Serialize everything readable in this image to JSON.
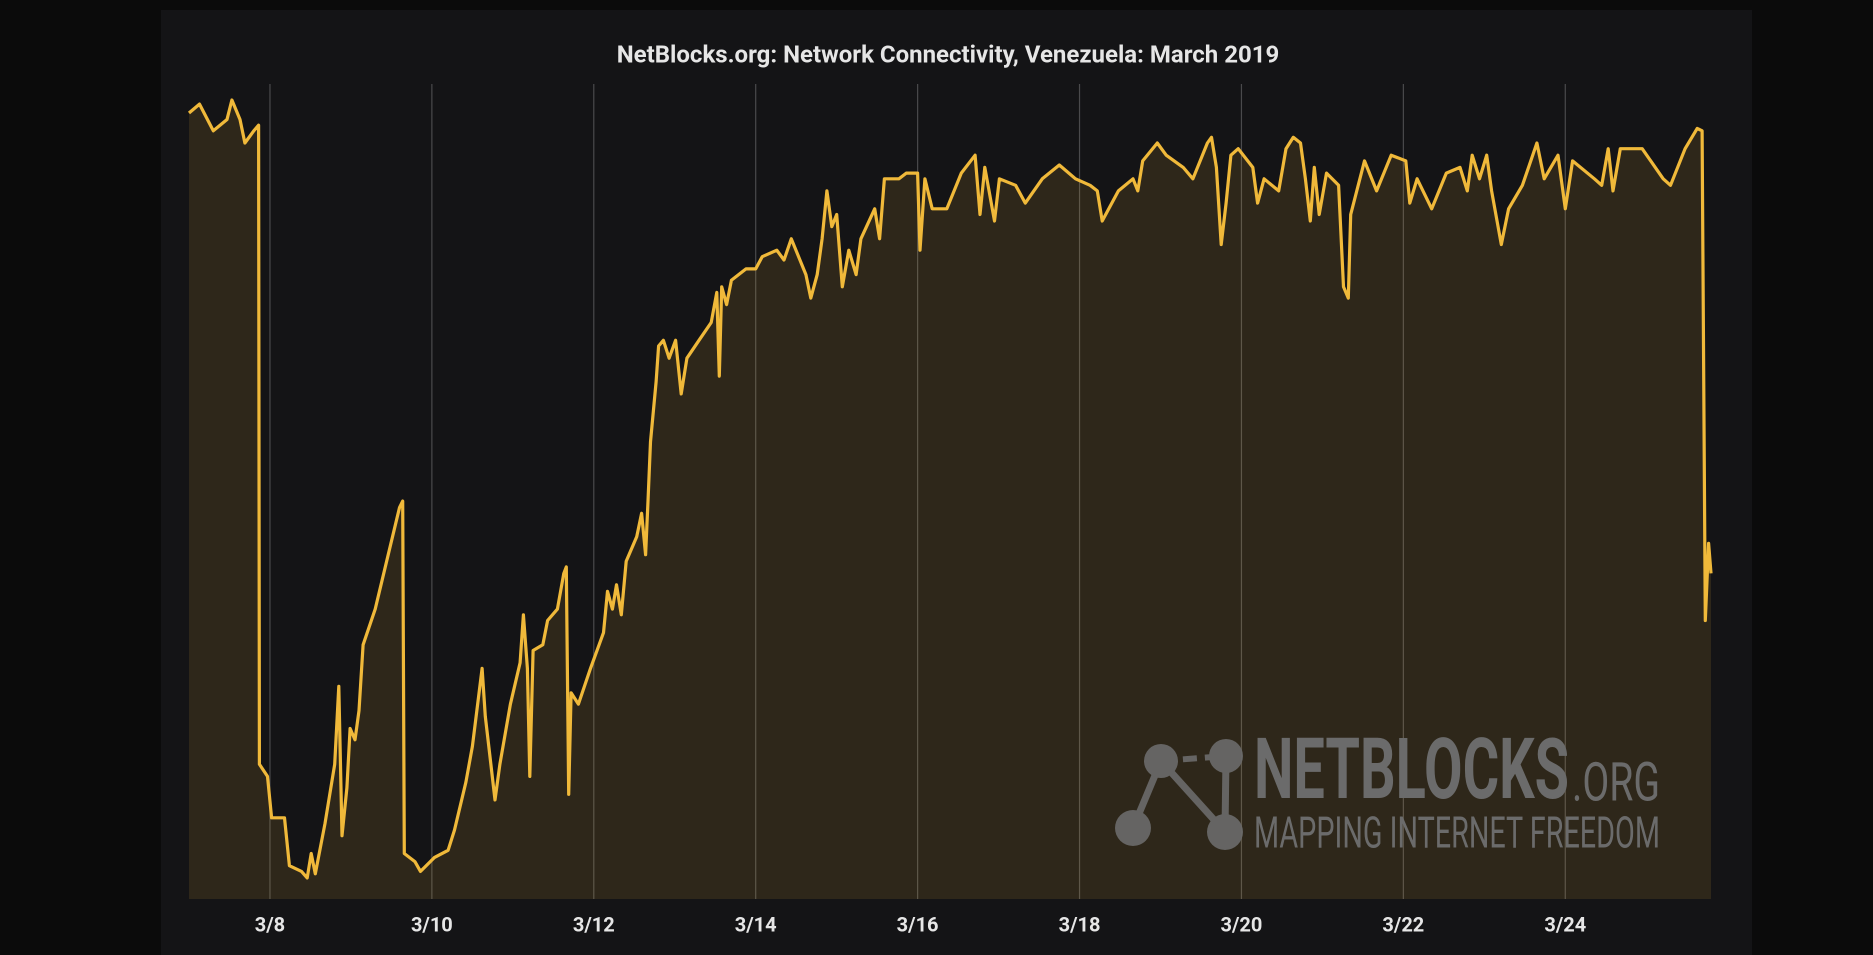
{
  "chart_data": {
    "type": "line",
    "title": "NetBlocks.org: Network Connectivity, Venezuela: March 2019",
    "annotations": [
      "NETBLOCKS",
      ".ORG",
      "MAPPING INTERNET FREEDOM"
    ],
    "xlim": [
      7,
      25.8
    ],
    "xticks": [
      {
        "value": 8,
        "label": "3/8"
      },
      {
        "value": 10,
        "label": "3/10"
      },
      {
        "value": 12,
        "label": "3/12"
      },
      {
        "value": 14,
        "label": "3/14"
      },
      {
        "value": 16,
        "label": "3/16"
      },
      {
        "value": 18,
        "label": "3/18"
      },
      {
        "value": 20,
        "label": "3/20"
      },
      {
        "value": 22,
        "label": "3/22"
      },
      {
        "value": 24,
        "label": "3/24"
      }
    ],
    "ylim": [
      0,
      100
    ],
    "grid": true,
    "series": [
      {
        "color": "#f0b93a",
        "x": [
          7.0,
          7.13,
          7.3,
          7.47,
          7.53,
          7.63,
          7.69,
          7.8,
          7.86,
          7.87,
          7.97,
          8.02,
          8.18,
          8.24,
          8.39,
          8.46,
          8.51,
          8.56,
          8.68,
          8.8,
          8.85,
          8.89,
          8.95,
          8.99,
          9.05,
          9.1,
          9.15,
          9.3,
          9.46,
          9.6,
          9.64,
          9.66,
          9.79,
          9.86,
          10.03,
          10.2,
          10.28,
          10.42,
          10.5,
          10.62,
          10.66,
          10.78,
          10.84,
          10.97,
          11.09,
          11.13,
          11.18,
          11.21,
          11.25,
          11.37,
          11.43,
          11.55,
          11.63,
          11.66,
          11.69,
          11.72,
          11.81,
          11.96,
          12.12,
          12.17,
          12.23,
          12.28,
          12.34,
          12.4,
          12.53,
          12.59,
          12.64,
          12.67,
          12.7,
          12.77,
          12.8,
          12.86,
          12.93,
          13.01,
          13.08,
          13.15,
          13.3,
          13.45,
          13.52,
          13.55,
          13.58,
          13.64,
          13.7,
          13.88,
          14.0,
          14.08,
          14.26,
          14.35,
          14.44,
          14.62,
          14.68,
          14.76,
          14.82,
          14.88,
          14.94,
          15.0,
          15.07,
          15.15,
          15.24,
          15.3,
          15.47,
          15.53,
          15.59,
          15.77,
          15.86,
          16.0,
          16.03,
          16.09,
          16.18,
          16.36,
          16.54,
          16.71,
          16.77,
          16.83,
          16.95,
          17.01,
          17.21,
          17.33,
          17.54,
          17.75,
          17.95,
          18.13,
          18.22,
          18.28,
          18.48,
          18.66,
          18.72,
          18.78,
          18.96,
          19.07,
          19.28,
          19.4,
          19.58,
          19.63,
          19.69,
          19.75,
          19.81,
          19.87,
          19.96,
          20.14,
          20.2,
          20.28,
          20.46,
          20.55,
          20.64,
          20.73,
          20.79,
          20.85,
          20.9,
          20.96,
          21.05,
          21.2,
          21.26,
          21.32,
          21.35,
          21.52,
          21.67,
          21.85,
          22.03,
          22.08,
          22.17,
          22.35,
          22.53,
          22.7,
          22.79,
          22.85,
          22.94,
          23.03,
          23.09,
          23.21,
          23.3,
          23.47,
          23.65,
          23.74,
          23.91,
          24.0,
          24.09,
          24.36,
          24.45,
          24.53,
          24.59,
          24.68,
          24.95,
          25.21,
          25.3,
          25.48,
          25.63,
          25.69,
          25.73,
          25.77,
          25.8
        ],
        "values": [
          96.8,
          97.9,
          94.6,
          96.0,
          98.4,
          96.0,
          93.1,
          94.6,
          95.3,
          16.6,
          15.1,
          10.0,
          10.0,
          4.1,
          3.4,
          2.6,
          5.6,
          3.1,
          9.3,
          16.6,
          26.2,
          7.8,
          13.7,
          21.0,
          19.6,
          23.2,
          31.3,
          35.7,
          42.4,
          48.2,
          49.0,
          5.6,
          4.6,
          3.4,
          5.1,
          6.0,
          8.5,
          14.4,
          18.8,
          28.4,
          22.5,
          12.2,
          16.6,
          24.0,
          29.1,
          35.0,
          28.4,
          15.1,
          30.6,
          31.3,
          34.3,
          35.7,
          40.1,
          40.9,
          12.9,
          25.4,
          24.0,
          28.4,
          32.8,
          37.9,
          35.7,
          38.7,
          35.0,
          41.6,
          44.6,
          47.5,
          42.4,
          49.0,
          56.3,
          63.7,
          68.1,
          68.8,
          66.6,
          68.8,
          62.2,
          66.6,
          68.8,
          71.0,
          74.7,
          64.4,
          75.4,
          73.2,
          76.2,
          77.6,
          77.6,
          79.1,
          79.9,
          78.7,
          81.3,
          76.9,
          74.0,
          76.9,
          81.3,
          87.2,
          82.8,
          84.3,
          75.4,
          79.9,
          76.9,
          81.3,
          85.0,
          81.3,
          88.7,
          88.7,
          89.4,
          89.4,
          79.9,
          88.7,
          85.0,
          85.0,
          89.4,
          91.6,
          84.3,
          90.1,
          83.5,
          88.7,
          87.9,
          85.7,
          88.7,
          90.4,
          88.7,
          87.9,
          87.2,
          83.5,
          87.2,
          88.7,
          87.2,
          90.9,
          93.1,
          91.6,
          90.1,
          88.7,
          93.1,
          93.8,
          90.1,
          80.6,
          85.7,
          91.6,
          92.4,
          90.1,
          85.7,
          88.7,
          87.2,
          92.4,
          93.8,
          93.1,
          88.7,
          83.5,
          90.1,
          84.3,
          89.4,
          87.9,
          75.4,
          74.0,
          84.3,
          90.9,
          87.2,
          91.6,
          90.9,
          85.7,
          88.7,
          85.0,
          89.4,
          90.1,
          87.2,
          91.6,
          88.7,
          91.6,
          87.2,
          80.6,
          85.0,
          87.9,
          93.1,
          88.7,
          91.6,
          85.0,
          90.9,
          88.7,
          87.9,
          92.4,
          87.2,
          92.4,
          92.4,
          88.7,
          87.9,
          92.4,
          94.9,
          94.6,
          34.3,
          43.8,
          40.1
        ]
      }
    ]
  }
}
